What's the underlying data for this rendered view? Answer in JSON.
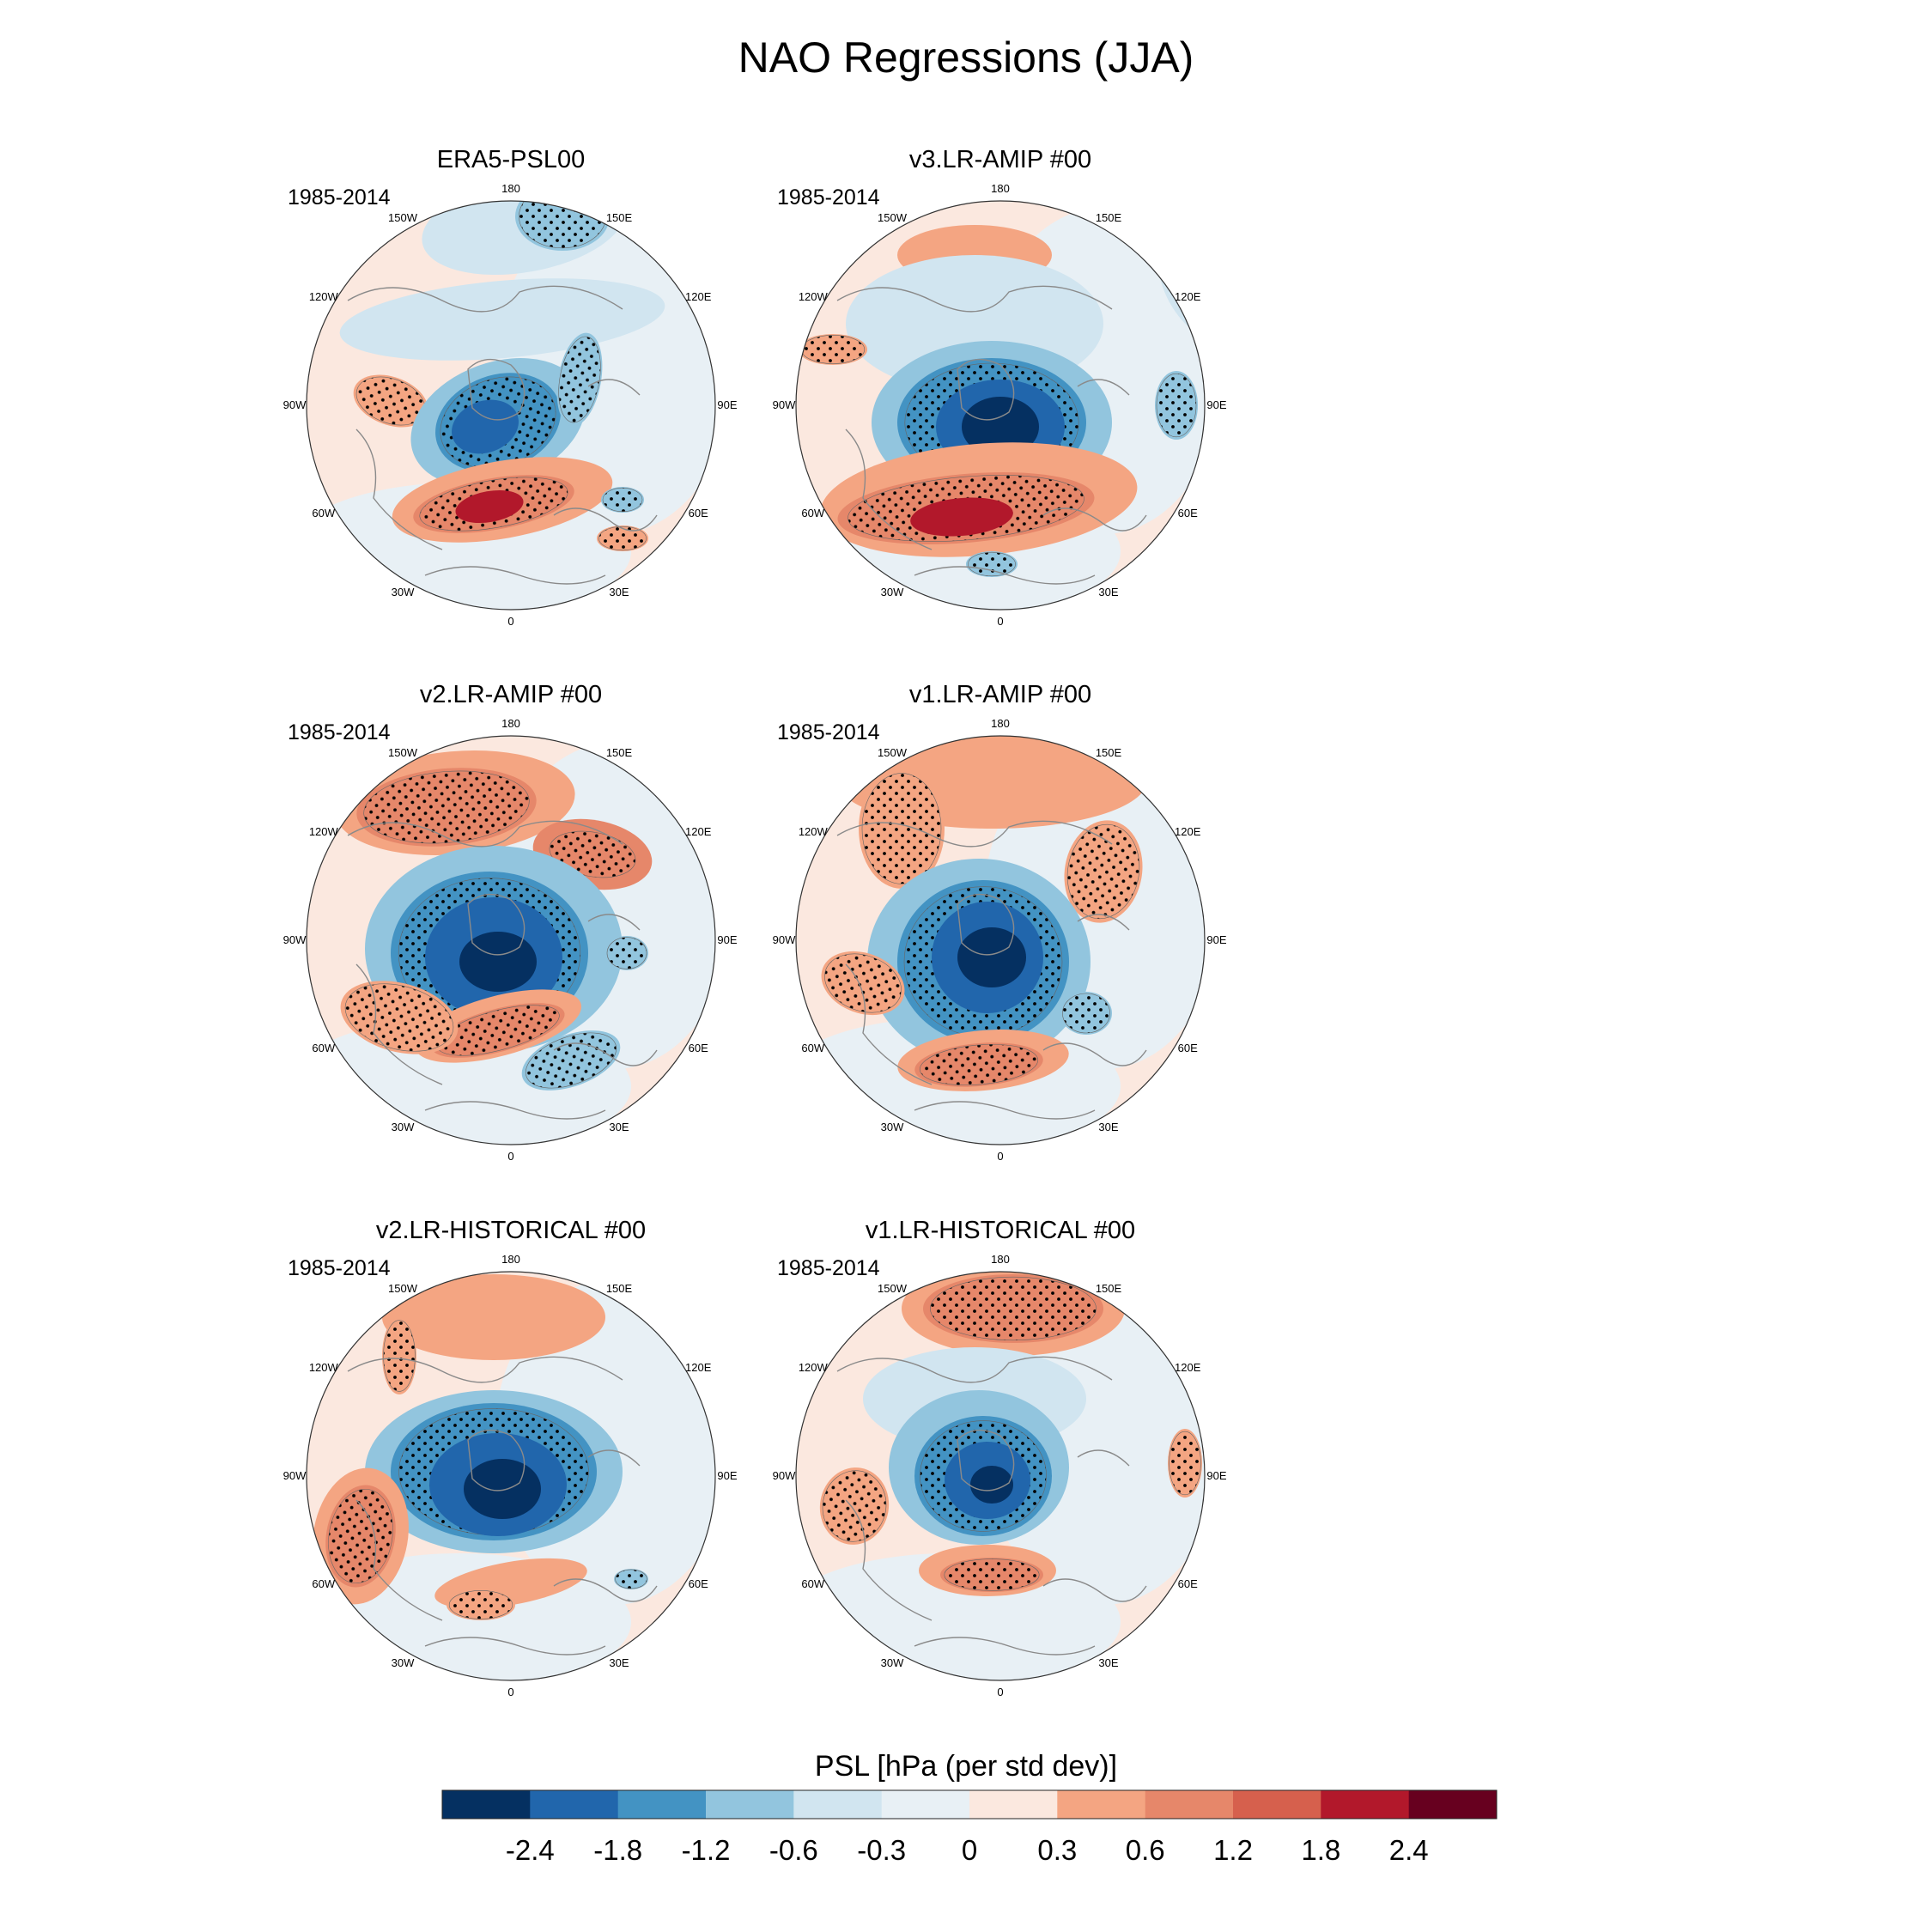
{
  "title": "NAO Regressions (JJA)",
  "panels": [
    {
      "title": "ERA5-PSL00",
      "period": "1985-2014",
      "variant": "era5"
    },
    {
      "title": "v3.LR-AMIP  #00",
      "period": "1985-2014",
      "variant": "v3amip"
    },
    {
      "title": "v2.LR-AMIP  #00",
      "period": "1985-2014",
      "variant": "v2amip"
    },
    {
      "title": "v1.LR-AMIP  #00",
      "period": "1985-2014",
      "variant": "v1amip"
    },
    {
      "title": "v2.LR-HISTORICAL  #00",
      "period": "1985-2014",
      "variant": "v2hist"
    },
    {
      "title": "v1.LR-HISTORICAL  #00",
      "period": "1985-2014",
      "variant": "v1hist"
    }
  ],
  "longitude_labels": [
    "180",
    "150E",
    "120E",
    "90E",
    "60E",
    "30E",
    "0",
    "30W",
    "60W",
    "90W",
    "120W",
    "150W"
  ],
  "colorbar": {
    "title": "PSL [hPa (per std dev)]",
    "tick_labels": [
      "-2.4",
      "-1.8",
      "-1.2",
      "-0.6",
      "-0.3",
      "0",
      "0.3",
      "0.6",
      "1.2",
      "1.8",
      "2.4"
    ],
    "colors": [
      "#053061",
      "#2166ac",
      "#4393c3",
      "#92c5de",
      "#d1e5f0",
      "#e8f0f5",
      "#fbe8df",
      "#f4a582",
      "#e6876a",
      "#d6604d",
      "#b2182b",
      "#67001f"
    ]
  },
  "chart_data": {
    "type": "heatmap",
    "projection": "north-polar-stereographic",
    "variable": "PSL",
    "units": "hPa (per std dev)",
    "levels": [
      -2.4,
      -1.8,
      -1.2,
      -0.6,
      -0.3,
      0,
      0.3,
      0.6,
      1.2,
      1.8,
      2.4
    ]
  }
}
